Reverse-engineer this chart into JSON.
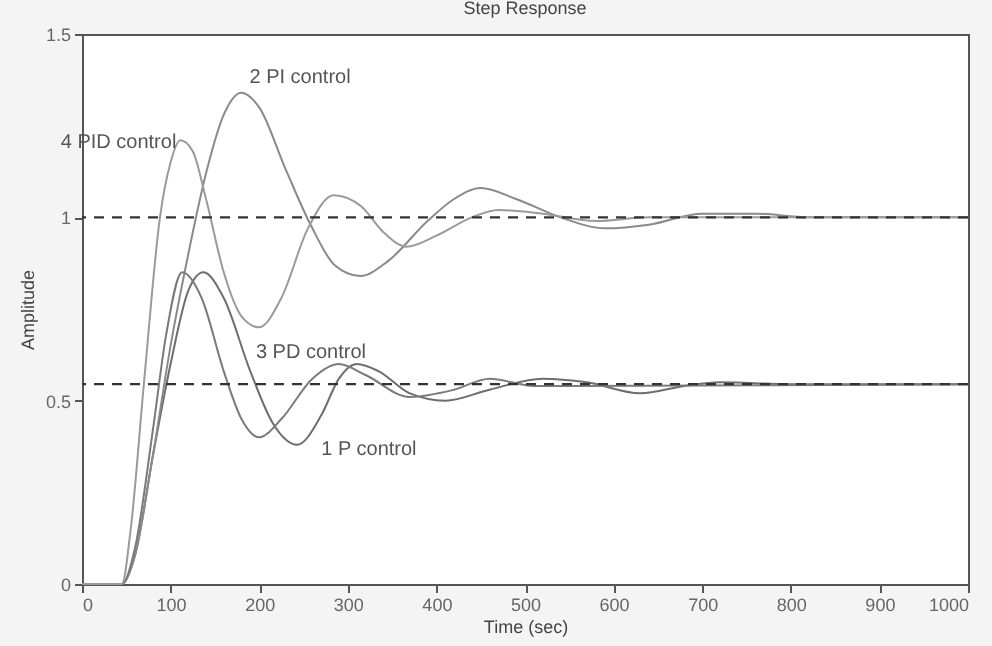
{
  "chart_data": {
    "type": "line",
    "title": "Step Response",
    "xlabel": "Time (sec)",
    "ylabel": "Amplitude",
    "xlim": [
      0,
      1000
    ],
    "xticks": [
      0,
      100,
      200,
      300,
      400,
      500,
      600,
      700,
      800,
      900,
      1000
    ],
    "ylim": [
      0,
      1.5
    ],
    "yticks": [
      0,
      0.5,
      1,
      1.5
    ],
    "grid": false,
    "marker": "none",
    "line_style": "solid",
    "series": [
      {
        "color": "#6e6e6e",
        "x": [
          0,
          45,
          60,
          80,
          100,
          120,
          137,
          160,
          190,
          215,
          243,
          270,
          290,
          310,
          335,
          370,
          410,
          460,
          520,
          570,
          630,
          680,
          720,
          800,
          1000
        ],
        "values": [
          0,
          0,
          0.08,
          0.35,
          0.6,
          0.8,
          0.85,
          0.78,
          0.58,
          0.44,
          0.38,
          0.46,
          0.56,
          0.6,
          0.58,
          0.52,
          0.5,
          0.53,
          0.56,
          0.55,
          0.52,
          0.54,
          0.55,
          0.545,
          0.545
        ]
      },
      {
        "color": "#8a8a8a",
        "x": [
          0,
          45,
          60,
          80,
          100,
          120,
          140,
          160,
          180,
          200,
          230,
          260,
          285,
          314,
          345,
          390,
          420,
          450,
          490,
          540,
          591,
          640,
          700,
          760,
          820,
          1000
        ],
        "values": [
          0,
          0,
          0.08,
          0.35,
          0.65,
          0.9,
          1.12,
          1.28,
          1.34,
          1.3,
          1.13,
          0.97,
          0.87,
          0.84,
          0.88,
          0.99,
          1.05,
          1.08,
          1.05,
          1.0,
          0.97,
          0.98,
          1.01,
          1.01,
          1.0,
          1.0
        ]
      },
      {
        "color": "#7a7a7a",
        "x": [
          0,
          45,
          60,
          80,
          95,
          113,
          135,
          160,
          180,
          200,
          225,
          260,
          290,
          320,
          370,
          420,
          460,
          510,
          560,
          1000
        ],
        "values": [
          0,
          0,
          0.1,
          0.42,
          0.68,
          0.85,
          0.78,
          0.58,
          0.45,
          0.4,
          0.45,
          0.56,
          0.6,
          0.57,
          0.51,
          0.53,
          0.56,
          0.54,
          0.54,
          0.545
        ]
      },
      {
        "color": "#9a9a9a",
        "x": [
          0,
          45,
          55,
          70,
          88,
          100,
          111,
          125,
          140,
          160,
          180,
          200,
          225,
          255,
          284,
          315,
          340,
          366,
          400,
          440,
          470,
          520,
          580,
          640,
          1000
        ],
        "values": [
          0,
          0,
          0.15,
          0.55,
          1.0,
          1.15,
          1.21,
          1.18,
          1.05,
          0.85,
          0.73,
          0.7,
          0.78,
          0.97,
          1.06,
          1.03,
          0.96,
          0.92,
          0.95,
          1.0,
          1.02,
          1.01,
          0.99,
          1.0,
          1.0
        ]
      }
    ],
    "ref_lines": [
      {
        "axis": "y",
        "value": 1,
        "color": "#333333",
        "line_style": "dashed"
      },
      {
        "axis": "y",
        "value": 0.545,
        "color": "#333333",
        "line_style": "dashed"
      }
    ],
    "annotations": [
      {
        "text": "2 PI control",
        "x": 180,
        "y": 1.34
      },
      {
        "text": "4 PID control",
        "x": 111,
        "y": 1.21
      },
      {
        "text": "3 PD control",
        "x": 290,
        "y": 0.6
      },
      {
        "text": "1 P control",
        "x": 243,
        "y": 0.38
      }
    ]
  }
}
